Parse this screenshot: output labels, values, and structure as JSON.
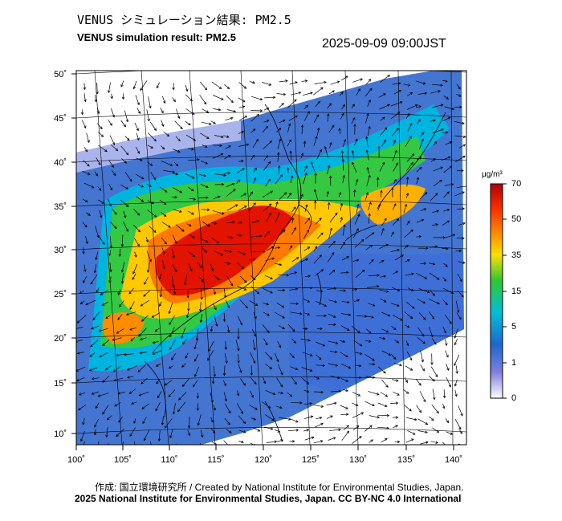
{
  "header": {
    "title_ja": "VENUS シミュレーション結果: PM2.5",
    "title_en": "VENUS simulation result: PM2.5",
    "timestamp": "2025-09-09 09:00JST"
  },
  "map": {
    "lat_labels": [
      "50˚",
      "45˚",
      "40˚",
      "35˚",
      "30˚",
      "25˚",
      "20˚",
      "15˚",
      "10˚"
    ],
    "lon_labels": [
      "100˚",
      "105˚",
      "110˚",
      "115˚",
      "120˚",
      "125˚",
      "130˚",
      "135˚",
      "140˚"
    ],
    "lat_values": [
      50,
      45,
      40,
      35,
      30,
      25,
      20,
      15,
      10
    ],
    "lon_values": [
      100,
      105,
      110,
      115,
      120,
      125,
      130,
      135,
      140
    ],
    "variable": "PM2.5",
    "wind_vectors": true
  },
  "colorbar": {
    "unit": "μg/m³",
    "ticks": [
      "70",
      "50",
      "35",
      "15",
      "5",
      "1",
      "0"
    ],
    "colors": [
      "#d00000",
      "#ff6a00",
      "#ffd200",
      "#33cc33",
      "#00b4e6",
      "#1f5ccc",
      "#ffffff"
    ]
  },
  "footer": {
    "credit_ja": "作成: 国立環境研究所 / Created by National Institute for Environmental Studies, Japan.",
    "credit_en": "2025 National Institute for Environmental Studies, Japan. CC BY-NC 4.0 International"
  }
}
